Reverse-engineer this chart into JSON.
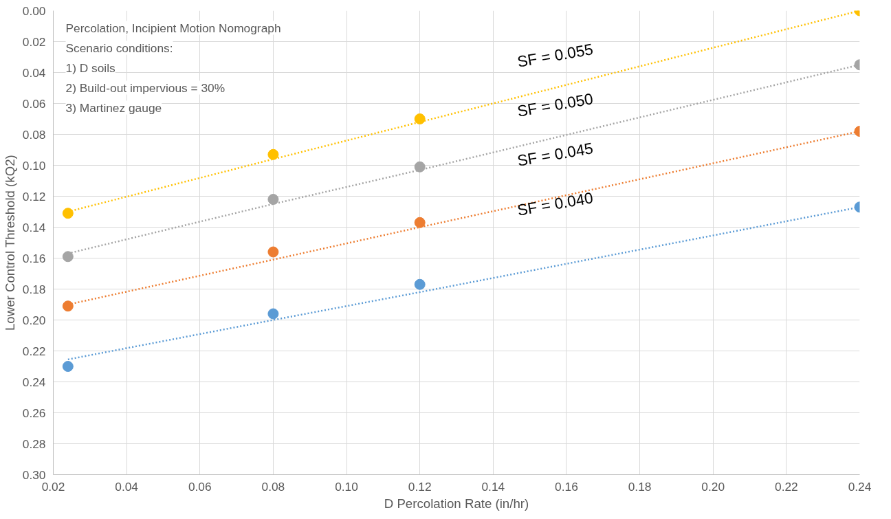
{
  "chart_data": {
    "type": "scatter",
    "title": "Percolation, Incipient Motion Nomograph",
    "xlabel": "D Percolation Rate (in/hr)",
    "ylabel": "Lower Control Threshold (kQ2)",
    "x": [
      0.024,
      0.08,
      0.12,
      0.24
    ],
    "series": [
      {
        "color": "#ffc000",
        "values": [
          0.131,
          0.093,
          0.07,
          0.0
        ],
        "marker": "circle"
      },
      {
        "color": "#a5a5a5",
        "values": [
          0.159,
          0.122,
          0.101,
          0.035
        ],
        "marker": "circle"
      },
      {
        "color": "#ed7d31",
        "values": [
          0.191,
          0.156,
          0.137,
          0.078
        ],
        "marker": "circle"
      },
      {
        "color": "#5b9bd5",
        "values": [
          0.23,
          0.196,
          0.177,
          0.127
        ],
        "marker": "circle"
      },
      {
        "type": "line",
        "color": "#ffc000",
        "values": [
          0.13,
          0.096,
          0.072,
          0.0
        ],
        "line_style": "dotted",
        "marker": "none"
      },
      {
        "type": "line",
        "color": "#a5a5a5",
        "values": [
          0.157,
          0.125,
          0.103,
          0.035
        ],
        "line_style": "dotted",
        "marker": "none"
      },
      {
        "type": "line",
        "color": "#ed7d31",
        "values": [
          0.19,
          0.161,
          0.14,
          0.078
        ],
        "line_style": "dotted",
        "marker": "none"
      },
      {
        "type": "line",
        "color": "#5b9bd5",
        "values": [
          0.2255,
          0.2,
          0.182,
          0.127
        ],
        "line_style": "dotted",
        "marker": "none"
      }
    ],
    "annotations": [
      "Scenario conditions:",
      "1) D soils",
      "2) Build-out impervious = 30%",
      "3) Martinez gauge",
      "SF = 0.055",
      "SF = 0.050",
      "SF = 0.045",
      "SF = 0.040"
    ],
    "xlim": [
      0.02,
      0.24
    ],
    "ylim": [
      0.3,
      0.0
    ],
    "xticks": [
      {
        "value": 0.02,
        "label": "0.02"
      },
      {
        "value": 0.04,
        "label": "0.04"
      },
      {
        "value": 0.06,
        "label": "0.06"
      },
      {
        "value": 0.08,
        "label": "0.08"
      },
      {
        "value": 0.1,
        "label": "0.10"
      },
      {
        "value": 0.12,
        "label": "0.12"
      },
      {
        "value": 0.14,
        "label": "0.14"
      },
      {
        "value": 0.16,
        "label": "0.16"
      },
      {
        "value": 0.18,
        "label": "0.18"
      },
      {
        "value": 0.2,
        "label": "0.20"
      },
      {
        "value": 0.22,
        "label": "0.22"
      },
      {
        "value": 0.24,
        "label": "0.24"
      }
    ],
    "yticks": [
      {
        "value": 0,
        "label": "0.00"
      },
      {
        "value": 0.02,
        "label": "0.02"
      },
      {
        "value": 0.04,
        "label": "0.04"
      },
      {
        "value": 0.06,
        "label": "0.06"
      },
      {
        "value": 0.08,
        "label": "0.08"
      },
      {
        "value": 0.1,
        "label": "0.10"
      },
      {
        "value": 0.12,
        "label": "0.12"
      },
      {
        "value": 0.14,
        "label": "0.14"
      },
      {
        "value": 0.16,
        "label": "0.16"
      },
      {
        "value": 0.18,
        "label": "0.18"
      },
      {
        "value": 0.2,
        "label": "0.20"
      },
      {
        "value": 0.22,
        "label": "0.22"
      },
      {
        "value": 0.24,
        "label": "0.24"
      },
      {
        "value": 0.26,
        "label": "0.26"
      },
      {
        "value": 0.28,
        "label": "0.28"
      },
      {
        "value": 0.3,
        "label": "0.30"
      }
    ],
    "grid": true
  }
}
